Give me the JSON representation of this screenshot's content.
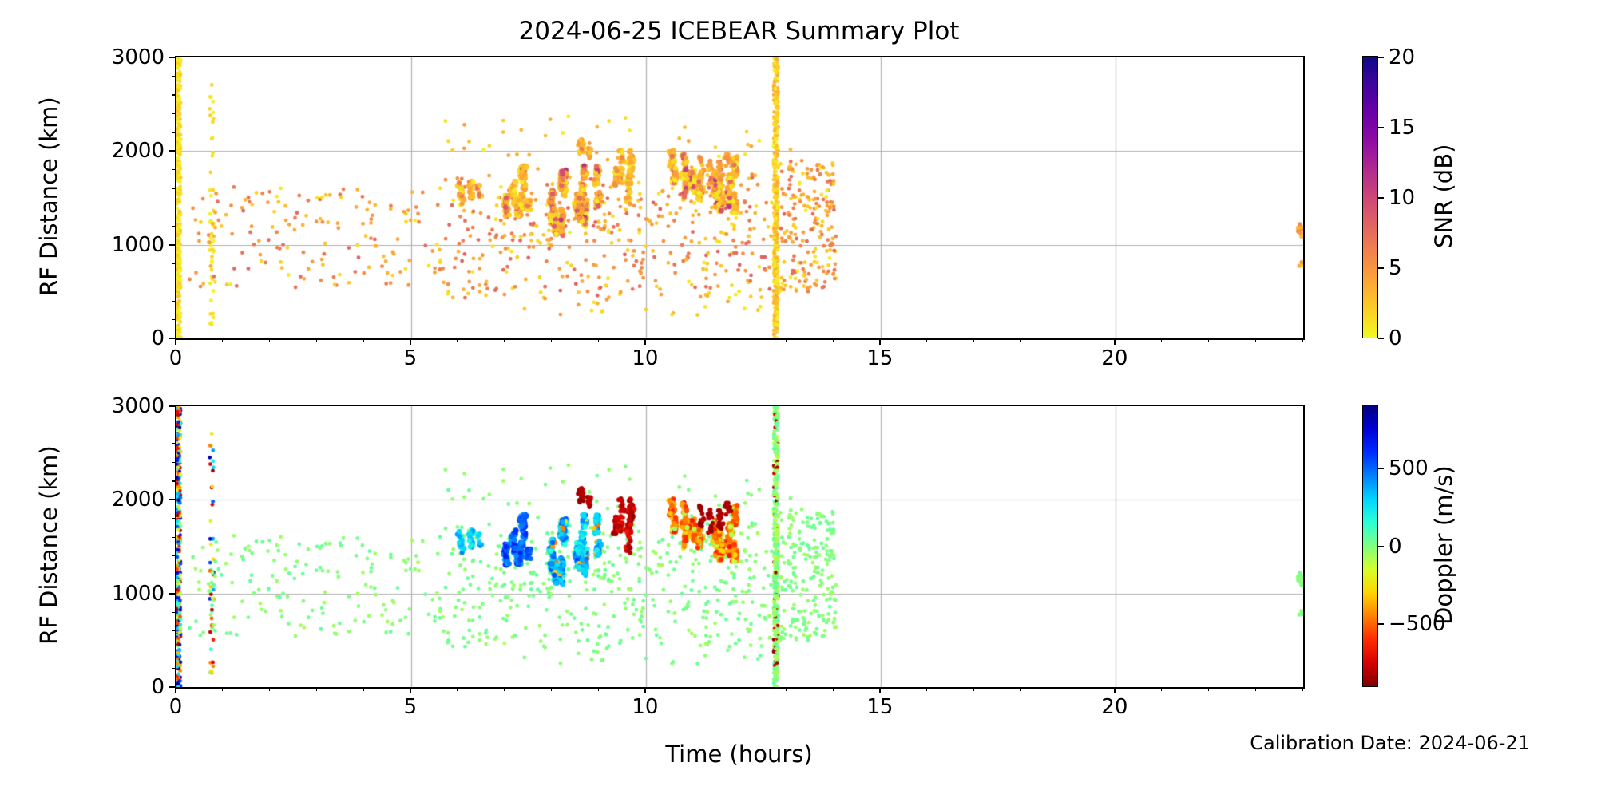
{
  "title": "2024-06-25 ICEBEAR Summary Plot",
  "xlabel": "Time (hours)",
  "ylabel": "RF Distance (km)",
  "calibration_note": "Calibration Date: 2024-06-21",
  "colors": {
    "background": "#ffffff",
    "grid": "#b0b0b0",
    "spine": "#000000",
    "text": "#000000"
  },
  "axes": {
    "x_range": [
      0,
      24
    ],
    "x_ticks": [
      0,
      5,
      10,
      15,
      20
    ],
    "x_tick_labels": [
      "0",
      "5",
      "10",
      "15",
      "20"
    ],
    "x_minor_step": 1,
    "y_range": [
      0,
      3000
    ],
    "y_ticks": [
      0,
      1000,
      2000,
      3000
    ],
    "y_tick_labels": [
      "0",
      "1000",
      "2000",
      "3000"
    ],
    "y_minor_step": 200,
    "grid_x": [
      5,
      10,
      15,
      20
    ],
    "grid_y": [
      1000,
      2000
    ]
  },
  "chart_data": {
    "type": "scatter",
    "x_label": "Time (hours)",
    "y_label": "RF Distance (km)",
    "x_range": [
      0,
      24
    ],
    "y_range": [
      0,
      3000
    ],
    "panels": [
      {
        "name": "snr",
        "value_key": "snr",
        "colorbar": {
          "label": "SNR (dB)",
          "range": [
            0,
            20
          ],
          "ticks": [
            0,
            5,
            10,
            15,
            20
          ],
          "tick_labels": [
            "0",
            "5",
            "10",
            "15",
            "20"
          ],
          "colormap": "plasma_r",
          "stops": [
            [
              0,
              "#f0f921"
            ],
            [
              0.1,
              "#fcce25"
            ],
            [
              0.2,
              "#fca636"
            ],
            [
              0.3,
              "#f2844b"
            ],
            [
              0.4,
              "#e16462"
            ],
            [
              0.5,
              "#cc4778"
            ],
            [
              0.6,
              "#b12a90"
            ],
            [
              0.7,
              "#8f0da4"
            ],
            [
              0.8,
              "#6a00a8"
            ],
            [
              0.9,
              "#41049d"
            ],
            [
              1,
              "#0d0887"
            ]
          ]
        }
      },
      {
        "name": "doppler",
        "value_key": "dop",
        "colorbar": {
          "label": "Doppler (m/s)",
          "range": [
            -900,
            900
          ],
          "ticks": [
            500,
            0,
            -500
          ],
          "tick_labels": [
            "500",
            "0",
            "−500"
          ],
          "colormap": "jet_r",
          "stops": [
            [
              0,
              "#800000"
            ],
            [
              0.083,
              "#d50000"
            ],
            [
              0.167,
              "#ff2b00"
            ],
            [
              0.25,
              "#ff8000"
            ],
            [
              0.333,
              "#ffd500"
            ],
            [
              0.417,
              "#d5ff2b"
            ],
            [
              0.5,
              "#80ff80"
            ],
            [
              0.583,
              "#2bffd5"
            ],
            [
              0.667,
              "#00d5ff"
            ],
            [
              0.75,
              "#0080ff"
            ],
            [
              0.833,
              "#002bff"
            ],
            [
              0.917,
              "#0000d5"
            ],
            [
              1,
              "#000080"
            ]
          ]
        }
      }
    ],
    "clusters": [
      {
        "id": "t0-calibration-strip",
        "style": "uniform",
        "t": [
          0.0,
          0.09
        ],
        "rf": [
          0,
          3000
        ],
        "n": 430,
        "snr": [
          0,
          2.5
        ],
        "dop": "noise",
        "r": 2.2
      },
      {
        "id": "t0p75-column",
        "style": "uniform",
        "t": [
          0.71,
          0.79
        ],
        "rf": [
          120,
          2950
        ],
        "n": 48,
        "snr": [
          0,
          2
        ],
        "dop": "noise",
        "r": 2.4
      },
      {
        "id": "t12p8-strip",
        "style": "uniform",
        "t": [
          12.72,
          12.82
        ],
        "rf": [
          0,
          3000
        ],
        "n": 410,
        "snr": [
          0,
          4
        ],
        "dop": [
          -110,
          80
        ],
        "speck": {
          "frac": 0.1,
          "dop": [
            -880,
            -740
          ],
          "snr": [
            1,
            4
          ]
        },
        "r": 2.3
      },
      {
        "id": "bg-early",
        "style": "uniform",
        "t": [
          0.15,
          5.6
        ],
        "rf": [
          540,
          1620
        ],
        "n": 160,
        "snr": [
          0.5,
          8
        ],
        "dop": [
          -65,
          55
        ],
        "r": 2.4
      },
      {
        "id": "bg-mid",
        "style": "uniform",
        "t": [
          5.6,
          12.7
        ],
        "rf": [
          430,
          1750
        ],
        "n": 430,
        "snr": [
          0.5,
          8.5
        ],
        "dop": [
          -65,
          55
        ],
        "r": 2.4
      },
      {
        "id": "bg-late",
        "style": "uniform",
        "t": [
          12.86,
          14.05
        ],
        "rf": [
          500,
          1900
        ],
        "n": 210,
        "snr": [
          0.5,
          8
        ],
        "dop": [
          -60,
          50
        ],
        "r": 2.4
      },
      {
        "id": "bg-low",
        "style": "uniform",
        "t": [
          6.8,
          12.6
        ],
        "rf": [
          250,
          440
        ],
        "n": 22,
        "snr": [
          0.5,
          5
        ],
        "dop": [
          -40,
          40
        ],
        "r": 2.4
      },
      {
        "id": "bg-upper",
        "style": "uniform",
        "t": [
          5.7,
          13.6
        ],
        "rf": [
          1780,
          2400
        ],
        "n": 45,
        "snr": [
          0.5,
          5
        ],
        "dop": [
          -50,
          40
        ],
        "r": 2.4
      },
      {
        "id": "blob-6h",
        "style": "streaks",
        "t": [
          5.95,
          6.45
        ],
        "rf": [
          1420,
          1800
        ],
        "n": 55,
        "ns": 4,
        "len": [
          100,
          220
        ],
        "snr": [
          0.3,
          5
        ],
        "core_snr": [
          4,
          8
        ],
        "dop": [
          150,
          400
        ],
        "core_dop": [
          200,
          450
        ],
        "r": 3.0
      },
      {
        "id": "blob-7h",
        "style": "streaks",
        "t": [
          6.9,
          7.65
        ],
        "rf": [
          1270,
          1880
        ],
        "n": 240,
        "ns": 7,
        "len": [
          120,
          280
        ],
        "snr": [
          0.2,
          4.5
        ],
        "core_snr": [
          5,
          9
        ],
        "dop": [
          380,
          640
        ],
        "core_dop": [
          430,
          660
        ],
        "r": 3.1
      },
      {
        "id": "blob-8p6h",
        "style": "streaks",
        "t": [
          7.95,
          9.15
        ],
        "rf": [
          1060,
          1870
        ],
        "n": 530,
        "ns": 13,
        "len": [
          140,
          330
        ],
        "snr": [
          0.2,
          5.5
        ],
        "core_snr": [
          6,
          12
        ],
        "dop": [
          140,
          520
        ],
        "core_dop": [
          250,
          560
        ],
        "speck": {
          "frac": 0.09,
          "dop": [
            -500,
            -230
          ],
          "snr": [
            2,
            7
          ]
        },
        "r": 3.1
      },
      {
        "id": "specks-8p6h",
        "style": "streaks",
        "t": [
          8.45,
          8.9
        ],
        "rf": [
          1850,
          2160
        ],
        "n": 45,
        "ns": 3,
        "len": [
          90,
          200
        ],
        "snr": [
          1,
          5
        ],
        "core_snr": [
          4,
          8
        ],
        "dop": [
          -880,
          -770
        ],
        "core_dop": [
          -880,
          -800
        ],
        "r": 2.8
      },
      {
        "id": "streaks-9p6h",
        "style": "streaks",
        "t": [
          9.35,
          9.75
        ],
        "rf": [
          1330,
          2080
        ],
        "n": 140,
        "ns": 5,
        "len": [
          200,
          420
        ],
        "snr": [
          0.3,
          4.5
        ],
        "core_snr": [
          3,
          7
        ],
        "dop": [
          -870,
          -640
        ],
        "core_dop": [
          -880,
          -760
        ],
        "r": 3.0
      },
      {
        "id": "blob-11h",
        "style": "streaks",
        "t": [
          10.45,
          11.95
        ],
        "rf": [
          1300,
          2070
        ],
        "n": 570,
        "ns": 15,
        "len": [
          150,
          340
        ],
        "snr": [
          0.2,
          5.5
        ],
        "core_snr": [
          6,
          12
        ],
        "dop": [
          -600,
          -260
        ],
        "core_dop": [
          -700,
          -380
        ],
        "speck": {
          "frac": 0.12,
          "dop": [
            -140,
            -40
          ],
          "snr": [
            0.5,
            3
          ]
        },
        "r": 3.1
      },
      {
        "id": "specks-11h",
        "style": "streaks",
        "t": [
          11.0,
          11.75
        ],
        "rf": [
          1500,
          2080
        ],
        "n": 60,
        "ns": 4,
        "len": [
          120,
          300
        ],
        "snr": [
          2,
          6
        ],
        "core_snr": [
          4,
          9
        ],
        "dop": [
          -880,
          -790
        ],
        "core_dop": [
          -880,
          -810
        ],
        "r": 2.8
      },
      {
        "id": "edge-24h",
        "style": "uniform",
        "t": [
          23.86,
          24.0
        ],
        "rf": [
          1080,
          1230
        ],
        "n": 13,
        "snr": [
          2.5,
          6
        ],
        "dop": [
          -35,
          25
        ],
        "r": 2.6
      },
      {
        "id": "edge-24h-low",
        "style": "uniform",
        "t": [
          23.9,
          24.0
        ],
        "rf": [
          770,
          815
        ],
        "n": 3,
        "snr": [
          2,
          5
        ],
        "dop": [
          -20,
          20
        ],
        "r": 2.6
      }
    ]
  }
}
